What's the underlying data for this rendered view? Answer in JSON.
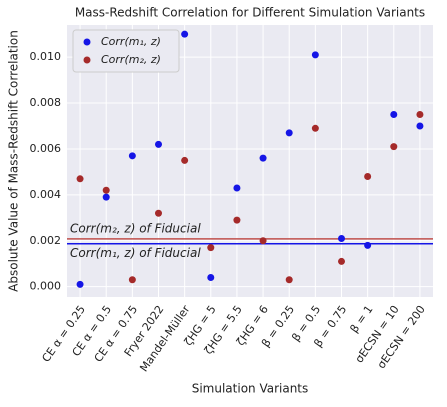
{
  "chart_data": {
    "type": "scatter",
    "title": "Mass-Redshift Correlation for Different Simulation Variants",
    "xlabel": "Simulation Variants",
    "ylabel": "Absolute Value of Mass-Redshift Correlation",
    "categories": [
      "CE α = 0.25",
      "CE α = 0.5",
      "CE α = 0.75",
      "Fryer 2022",
      "Mandel-Müller",
      "ζHG = 5",
      "ζHG = 5.5",
      "ζHG = 6",
      "β = 0.25",
      "β = 0.5",
      "β = 0.75",
      "β = 1",
      "σECSN = 10",
      "σECSN = 200"
    ],
    "series": [
      {
        "name": "Corr(m₁, z)",
        "color": "#1515e6",
        "values": [
          0.0001,
          0.0039,
          0.0057,
          0.0062,
          0.011,
          0.0004,
          0.0043,
          0.0056,
          0.0067,
          0.0101,
          0.0021,
          0.0018,
          0.0075,
          0.007
        ]
      },
      {
        "name": "Corr(m₂, z)",
        "color": "#a52a2a",
        "values": [
          0.0047,
          0.0042,
          0.0003,
          0.0032,
          0.0055,
          0.0017,
          0.0029,
          0.002,
          0.0003,
          0.0069,
          0.0011,
          0.0048,
          0.0061,
          0.0075
        ]
      }
    ],
    "reference_lines": [
      {
        "label": "Corr(m₂, z) of Fiducial",
        "value": 0.00208,
        "color": "#c0504d"
      },
      {
        "label": "Corr(m₁, z) of Fiducial",
        "value": 0.00187,
        "color": "#1515e6"
      }
    ],
    "ylim": [
      -0.00045,
      0.0114
    ],
    "yticks": [
      {
        "value": 0,
        "label": "0.000"
      },
      {
        "value": 0.002,
        "label": "0.002"
      },
      {
        "value": 0.004,
        "label": "0.004"
      },
      {
        "value": 0.006,
        "label": "0.006"
      },
      {
        "value": 0.008,
        "label": "0.008"
      },
      {
        "value": 0.01,
        "label": "0.010"
      }
    ],
    "grid": true,
    "legend": "upper left"
  }
}
